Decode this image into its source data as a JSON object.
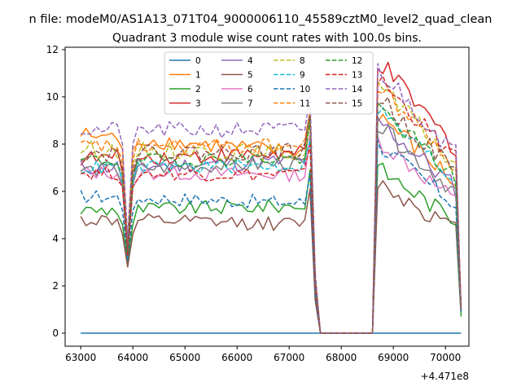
{
  "chart_data": {
    "type": "line",
    "suptitle": "n file: modeM0/AS1A13_071T04_9000006110_45589cztM0_level2_quad_clean",
    "title": "Quadrant 3 module wise count rates with 100.0s bins.",
    "xlabel": "",
    "ylabel": "",
    "x_offset_label": "+4.471e8",
    "xlim": [
      62700,
      70450
    ],
    "ylim": [
      -0.55,
      12.1
    ],
    "xticks": [
      63000,
      64000,
      65000,
      66000,
      67000,
      68000,
      69000,
      70000
    ],
    "yticks": [
      0,
      2,
      4,
      6,
      8,
      10,
      12
    ],
    "legend": {
      "location": "upper-center",
      "columns": 4
    },
    "colors": [
      "#1f77b4",
      "#ff7f0e",
      "#2ca02c",
      "#d62728",
      "#9467bd",
      "#8c564b",
      "#e377c2",
      "#7f7f7f",
      "#bcbd22",
      "#17becf",
      "#1f77b4",
      "#ff7f0e",
      "#2ca02c",
      "#d62728",
      "#9467bd",
      "#8c564b"
    ],
    "segments": [
      {
        "start": 63000,
        "end": 67500,
        "step": 100
      },
      {
        "start": 68600,
        "end": 70300,
        "step": 100
      }
    ],
    "series": [
      {
        "name": "0",
        "style": "solid",
        "base": [
          0,
          0
        ],
        "dip": 0,
        "end": [
          0,
          0
        ],
        "noise": 0
      },
      {
        "name": "1",
        "style": "solid",
        "base": [
          8.4,
          7.6
        ],
        "dip": 3.6,
        "end": [
          9.3,
          1.0
        ],
        "noise": 0.35
      },
      {
        "name": "2",
        "style": "solid",
        "base": [
          5.2,
          5.4
        ],
        "dip": 3.0,
        "end": [
          7.0,
          0.7
        ],
        "noise": 0.3
      },
      {
        "name": "3",
        "style": "solid",
        "base": [
          7.4,
          7.6
        ],
        "dip": 3.4,
        "end": [
          11.5,
          1.0
        ],
        "noise": 0.35
      },
      {
        "name": "4",
        "style": "solid",
        "base": [
          7.0,
          7.3
        ],
        "dip": 3.3,
        "end": [
          9.0,
          1.0
        ],
        "noise": 0.35
      },
      {
        "name": "5",
        "style": "solid",
        "base": [
          4.8,
          4.6
        ],
        "dip": 2.8,
        "end": [
          6.4,
          0.9
        ],
        "noise": 0.3
      },
      {
        "name": "6",
        "style": "solid",
        "base": [
          6.8,
          6.7
        ],
        "dip": 3.3,
        "end": [
          8.2,
          0.9
        ],
        "noise": 0.3
      },
      {
        "name": "7",
        "style": "solid",
        "base": [
          6.9,
          7.2
        ],
        "dip": 3.2,
        "end": [
          8.8,
          1.0
        ],
        "noise": 0.3
      },
      {
        "name": "8",
        "style": "dashed",
        "base": [
          7.8,
          7.6
        ],
        "dip": 3.5,
        "end": [
          10.5,
          1.0
        ],
        "noise": 0.35
      },
      {
        "name": "9",
        "style": "dashed",
        "base": [
          7.0,
          7.1
        ],
        "dip": 3.2,
        "end": [
          9.5,
          1.0
        ],
        "noise": 0.3
      },
      {
        "name": "10",
        "style": "dashed",
        "base": [
          5.8,
          5.5
        ],
        "dip": 3.1,
        "end": [
          8.0,
          0.9
        ],
        "noise": 0.3
      },
      {
        "name": "11",
        "style": "dashed",
        "base": [
          7.9,
          7.9
        ],
        "dip": 3.6,
        "end": [
          10.5,
          1.0
        ],
        "noise": 0.35
      },
      {
        "name": "12",
        "style": "dashed",
        "base": [
          7.3,
          7.4
        ],
        "dip": 3.3,
        "end": [
          9.6,
          1.0
        ],
        "noise": 0.3
      },
      {
        "name": "13",
        "style": "dashed",
        "base": [
          6.8,
          6.7
        ],
        "dip": 3.3,
        "end": [
          10.8,
          1.0
        ],
        "noise": 0.3
      },
      {
        "name": "14",
        "style": "dashed",
        "base": [
          8.6,
          8.6
        ],
        "dip": 4.0,
        "end": [
          11.2,
          1.0
        ],
        "noise": 0.35
      },
      {
        "name": "15",
        "style": "dashed",
        "base": [
          7.6,
          7.7
        ],
        "dip": 3.5,
        "end": [
          10.0,
          1.0
        ],
        "noise": 0.35
      }
    ]
  }
}
